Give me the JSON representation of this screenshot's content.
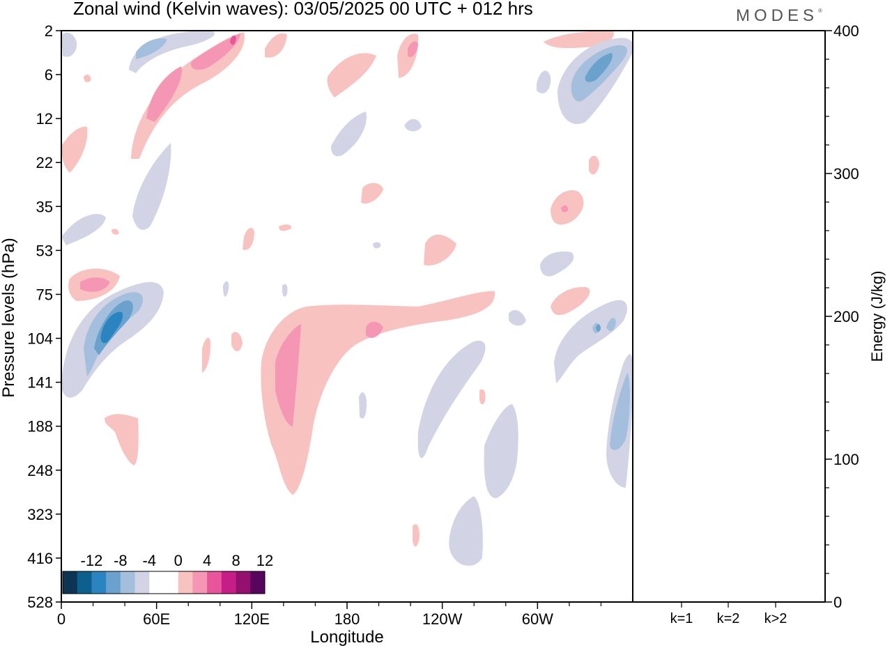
{
  "chart_data": {
    "type": "heatmap",
    "title": "Zonal wind (Kelvin waves):  03/05/2025  00 UTC  + 012 hrs",
    "brand": "MODES",
    "brand_mark": "®",
    "xlabel": "Longitude",
    "ylabel": "Pressure levels (hPa)",
    "x_ticks": [
      "0",
      "60E",
      "120E",
      "180",
      "120W",
      "60W"
    ],
    "x_tick_degrees": [
      0,
      60,
      120,
      180,
      240,
      300
    ],
    "x_range_degrees": [
      0,
      360
    ],
    "y_ticks": [
      "2",
      "6",
      "12",
      "22",
      "35",
      "53",
      "75",
      "104",
      "141",
      "188",
      "248",
      "323",
      "416",
      "528"
    ],
    "y_axis": "pressure levels, 2 hPa at top to 528 hPa at bottom",
    "colorbar": {
      "labels": [
        "-12",
        "-8",
        "-4",
        "0",
        "4",
        "8",
        "12"
      ],
      "colors": [
        "#0b3552",
        "#0d5f8e",
        "#2a84bf",
        "#6aa1cd",
        "#a4bedd",
        "#d2d4e6",
        "#ffffff",
        "#ffffff",
        "#f7c2c0",
        "#f596b5",
        "#e9559b",
        "#c51f87",
        "#931071",
        "#57065e"
      ]
    },
    "energy_panel": {
      "ylabel": "Energy (J/kg)",
      "y_ticks": [
        "0",
        "100",
        "200",
        "300",
        "400"
      ],
      "ylim": [
        0,
        400
      ],
      "categories": [
        "k=1",
        "k=2",
        "k>2"
      ],
      "values": [
        0.3,
        0.2,
        0.4
      ]
    }
  }
}
